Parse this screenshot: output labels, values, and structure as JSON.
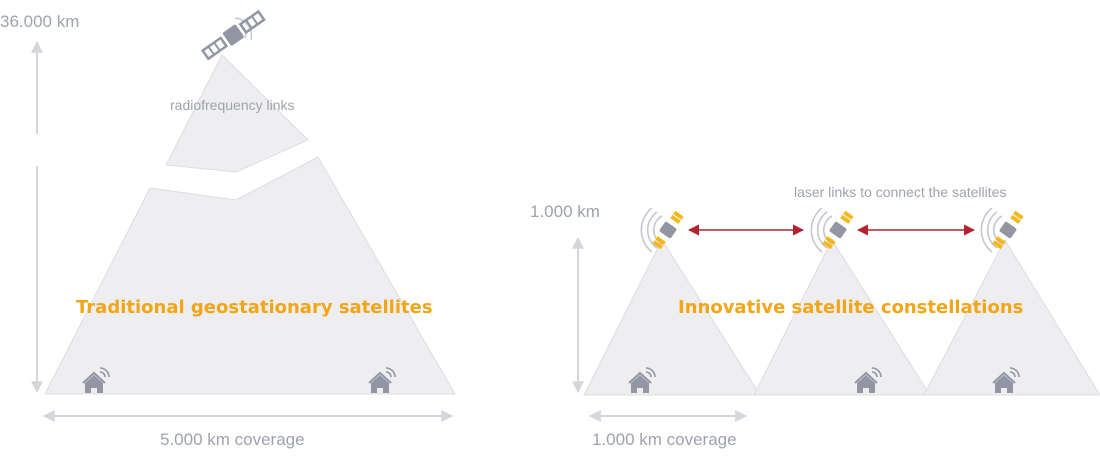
{
  "left": {
    "altitude_label": "36.000 km",
    "link_label": "radiofrequency links",
    "title": "Traditional geostationary satellites",
    "coverage_label": "5.000 km coverage"
  },
  "right": {
    "altitude_label": "1.000 km",
    "link_label": "laser links to connect the satellites",
    "title": "Innovative satellite constellations",
    "coverage_label": "1.000 km coverage"
  },
  "colors": {
    "cone_fill": "#eeeef0",
    "cone_stroke": "#dcdde1",
    "arrow_gray": "#d4d6db",
    "laser_red": "#b3232f",
    "satellite_gray": "#9296a3",
    "panel_yellow": "#f5b81c",
    "title_orange": "#f2a516",
    "label_gray": "#9ea3ad"
  },
  "icons": [
    "satellite-icon",
    "house-icon",
    "signal-waves-icon",
    "double-arrow-icon"
  ]
}
